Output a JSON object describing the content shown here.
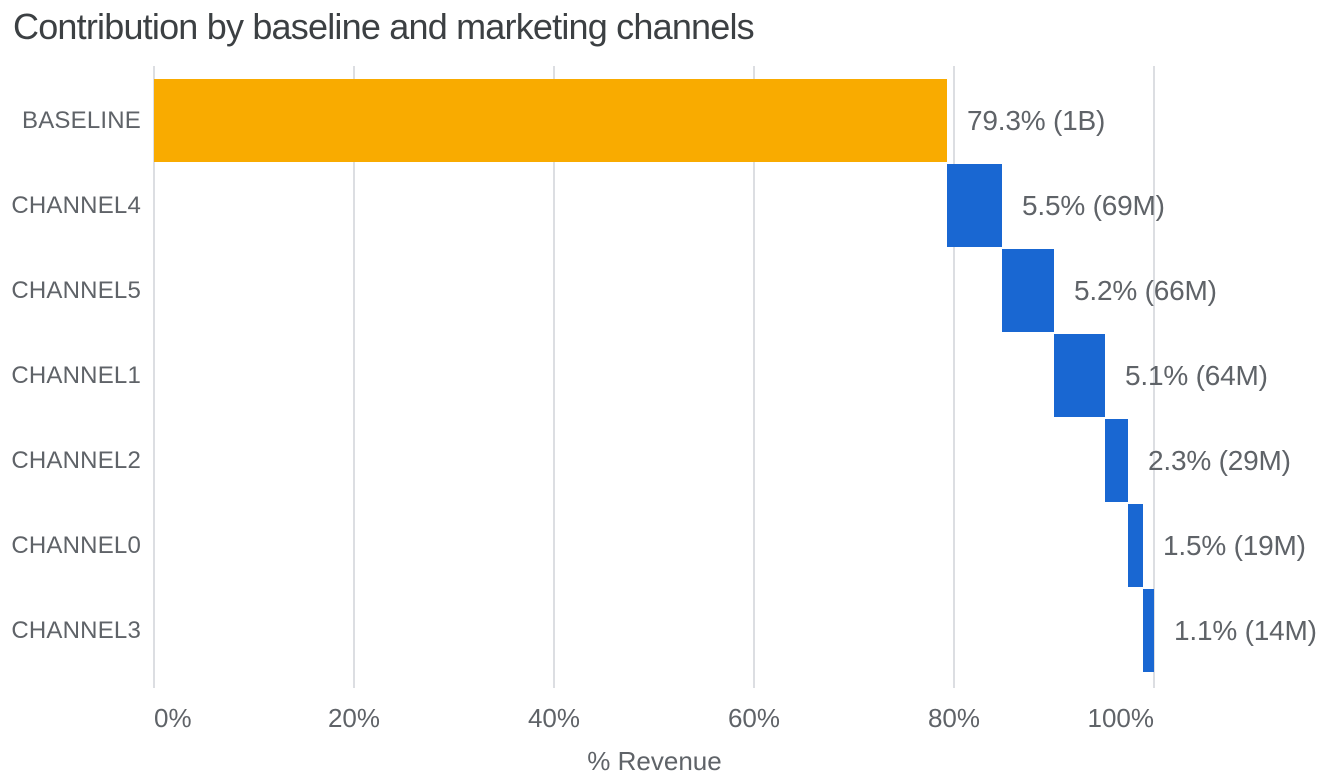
{
  "page": {
    "background_color": "#ffffff"
  },
  "chart_data": {
    "type": "bar",
    "variant": "waterfall",
    "orientation": "horizontal",
    "title": "Contribution by baseline and marketing channels",
    "xlabel": "% Revenue",
    "ylabel": "",
    "grid": true,
    "legend": "none",
    "xlim": [
      0,
      117.6
    ],
    "x_ticks": [
      {
        "value": 0,
        "label": "0%"
      },
      {
        "value": 20,
        "label": "20%"
      },
      {
        "value": 40,
        "label": "40%"
      },
      {
        "value": 60,
        "label": "60%"
      },
      {
        "value": 80,
        "label": "80%"
      },
      {
        "value": 100,
        "label": "100%"
      }
    ],
    "categories": [
      "BASELINE",
      "CHANNEL4",
      "CHANNEL5",
      "CHANNEL1",
      "CHANNEL2",
      "CHANNEL0",
      "CHANNEL3"
    ],
    "bars": [
      {
        "category": "BASELINE",
        "start_pct": 0,
        "value_pct": 79.3,
        "end_pct": 79.3,
        "amount": "1B",
        "label": "79.3% (1B)",
        "color": "#F9AB00"
      },
      {
        "category": "CHANNEL4",
        "start_pct": 79.3,
        "value_pct": 5.5,
        "end_pct": 84.8,
        "amount": "69M",
        "label": "5.5% (69M)",
        "color": "#1967D2"
      },
      {
        "category": "CHANNEL5",
        "start_pct": 84.8,
        "value_pct": 5.2,
        "end_pct": 90.0,
        "amount": "66M",
        "label": "5.2% (66M)",
        "color": "#1967D2"
      },
      {
        "category": "CHANNEL1",
        "start_pct": 90.0,
        "value_pct": 5.1,
        "end_pct": 95.1,
        "amount": "64M",
        "label": "5.1% (64M)",
        "color": "#1967D2"
      },
      {
        "category": "CHANNEL2",
        "start_pct": 95.1,
        "value_pct": 2.3,
        "end_pct": 97.4,
        "amount": "29M",
        "label": "2.3% (29M)",
        "color": "#1967D2"
      },
      {
        "category": "CHANNEL0",
        "start_pct": 97.4,
        "value_pct": 1.5,
        "end_pct": 98.9,
        "amount": "19M",
        "label": "1.5% (19M)",
        "color": "#1967D2"
      },
      {
        "category": "CHANNEL3",
        "start_pct": 98.9,
        "value_pct": 1.1,
        "end_pct": 100.0,
        "amount": "14M",
        "label": "1.1% (14M)",
        "color": "#1967D2"
      }
    ],
    "colors": {
      "baseline_bar": "#F9AB00",
      "channel_bar": "#1967D2",
      "title_text": "#3C4043",
      "axis_text": "#5F6368",
      "value_label_text": "#5F6368",
      "gridline": "#DCDEE2"
    }
  }
}
